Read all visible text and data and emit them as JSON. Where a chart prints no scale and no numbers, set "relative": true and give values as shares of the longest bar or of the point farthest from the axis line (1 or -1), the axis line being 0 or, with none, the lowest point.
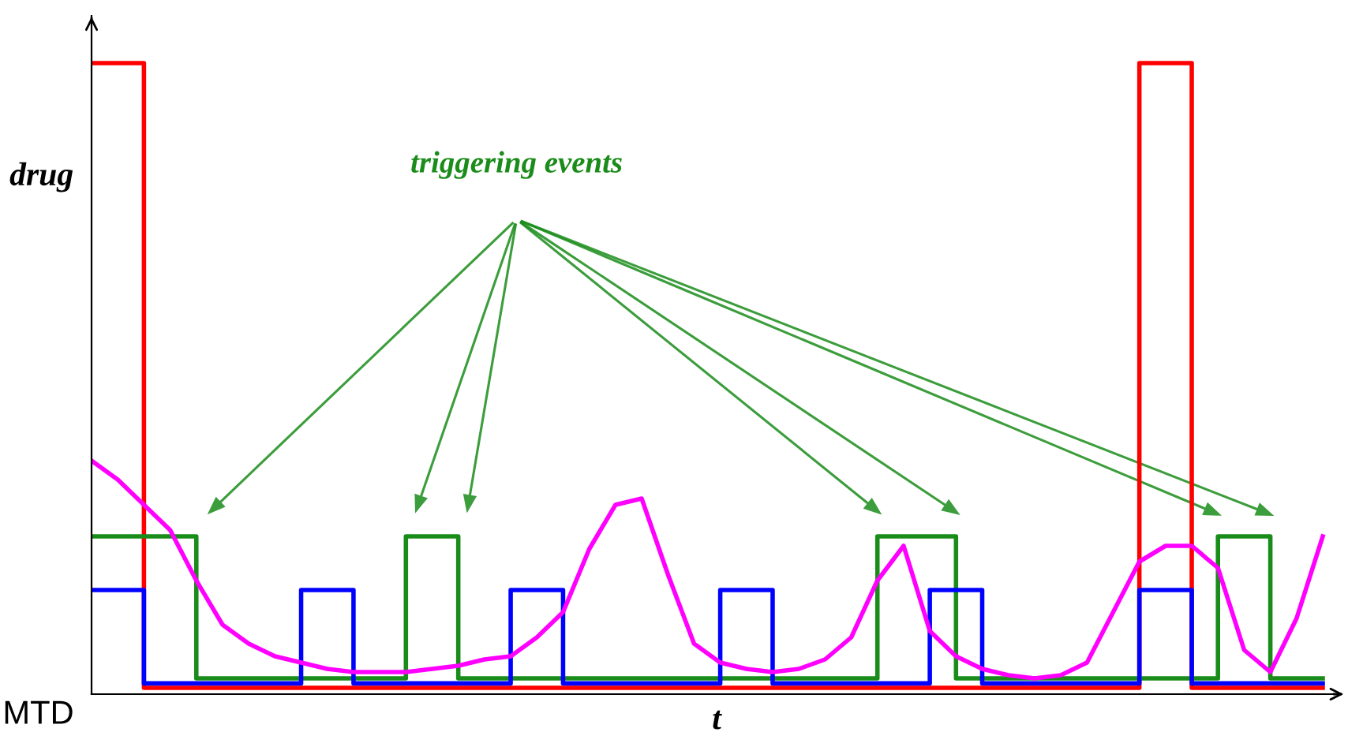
{
  "chart_data": {
    "type": "step",
    "relative": true,
    "xlabel": "t",
    "ylabel": "drug",
    "annotations": [
      "triggering events",
      "MTD"
    ],
    "line_style": "solid",
    "marker": "none",
    "categories": [
      null,
      null,
      null,
      null,
      null,
      null,
      null,
      null,
      null,
      null,
      null,
      null,
      null,
      null,
      null,
      null,
      null,
      null,
      null,
      null,
      null,
      null,
      null,
      null,
      null,
      null,
      null,
      null,
      null,
      null,
      null,
      null,
      null,
      null,
      null,
      null,
      null,
      null,
      null,
      null,
      null,
      null,
      null,
      null,
      null,
      null,
      null,
      null
    ],
    "series": [
      {
        "color": "#ff0000",
        "values": [
          1,
          1,
          0.01,
          0.01,
          0.01,
          0.01,
          0.01,
          0.01,
          0.01,
          0.01,
          0.01,
          0.01,
          0.01,
          0.01,
          0.01,
          0.01,
          0.01,
          0.01,
          0.01,
          0.01,
          0.01,
          0.01,
          0.01,
          0.01,
          0.01,
          0.01,
          0.01,
          0.01,
          0.01,
          0.01,
          0.01,
          0.01,
          0.01,
          0.01,
          0.01,
          0.01,
          0.01,
          0.01,
          0.01,
          0.01,
          1,
          1,
          0.01,
          0.01,
          0.01,
          0.01,
          0.01,
          0.01
        ]
      },
      {
        "color": "#1a8c1a",
        "values": [
          0.25,
          0.25,
          0.25,
          0.25,
          0.025,
          0.025,
          0.025,
          0.025,
          0.025,
          0.025,
          0.025,
          0.025,
          0.25,
          0.25,
          0.025,
          0.025,
          0.025,
          0.025,
          0.025,
          0.025,
          0.025,
          0.025,
          0.025,
          0.025,
          0.025,
          0.025,
          0.025,
          0.025,
          0.025,
          0.025,
          0.25,
          0.25,
          0.25,
          0.025,
          0.025,
          0.025,
          0.025,
          0.025,
          0.025,
          0.025,
          0.025,
          0.025,
          0.025,
          0.25,
          0.25,
          0.025,
          0.025,
          0.025
        ]
      },
      {
        "color": "#0000ff",
        "values": [
          0.165,
          0.165,
          0.017,
          0.017,
          0.017,
          0.017,
          0.017,
          0.017,
          0.165,
          0.165,
          0.017,
          0.017,
          0.017,
          0.017,
          0.017,
          0.017,
          0.165,
          0.165,
          0.017,
          0.017,
          0.017,
          0.017,
          0.017,
          0.017,
          0.165,
          0.165,
          0.017,
          0.017,
          0.017,
          0.017,
          0.017,
          0.017,
          0.165,
          0.165,
          0.017,
          0.017,
          0.017,
          0.017,
          0.017,
          0.017,
          0.165,
          0.165,
          0.017,
          0.017,
          0.017,
          0.017,
          0.017,
          0.017
        ]
      },
      {
        "type": "line",
        "color": "#ff00ff",
        "values": [
          0.37,
          0.34,
          0.3,
          0.26,
          0.18,
          0.11,
          0.08,
          0.06,
          0.05,
          0.04,
          0.035,
          0.035,
          0.035,
          0.04,
          0.045,
          0.055,
          0.06,
          0.09,
          0.13,
          0.23,
          0.3,
          0.31,
          0.19,
          0.08,
          0.05,
          0.04,
          0.035,
          0.04,
          0.055,
          0.09,
          0.18,
          0.235,
          0.1,
          0.06,
          0.04,
          0.03,
          0.025,
          0.03,
          0.05,
          0.13,
          0.21,
          0.235,
          0.235,
          0.2,
          0.07,
          0.035,
          0.12,
          0.25
        ]
      }
    ]
  }
}
